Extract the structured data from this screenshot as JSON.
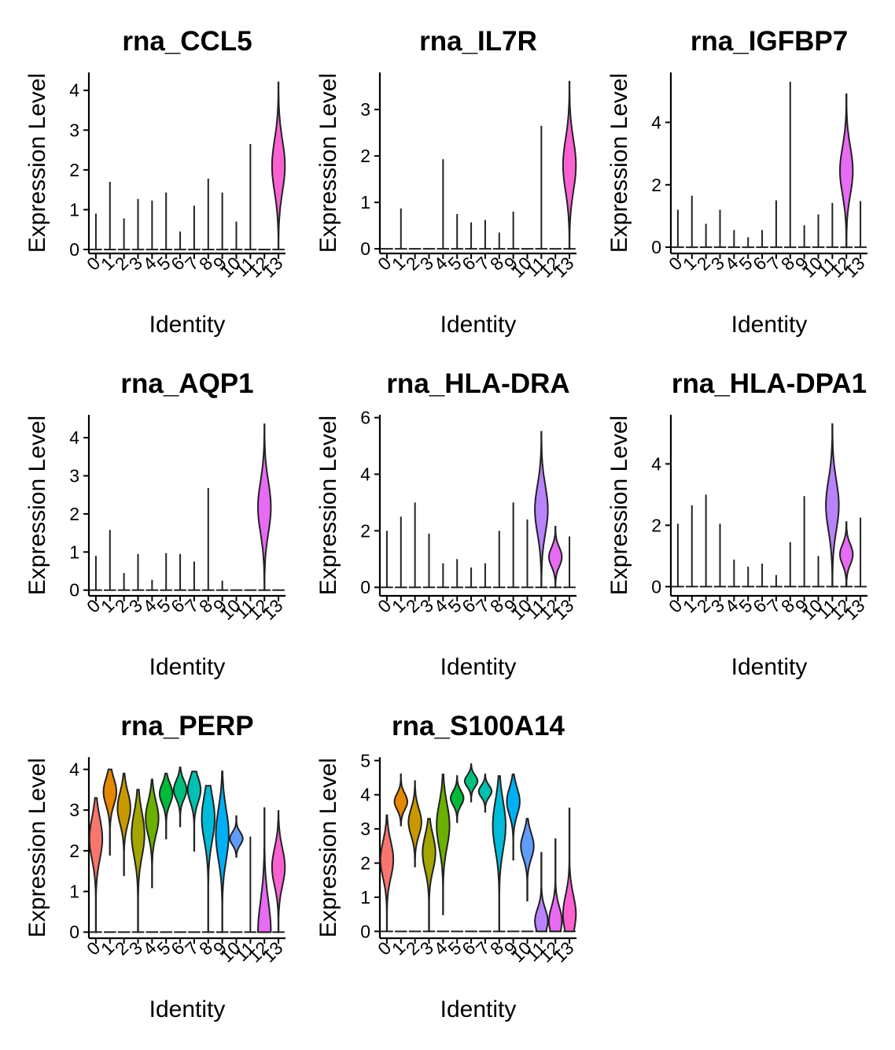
{
  "figure": {
    "xlabel": "Identity",
    "ylabel": "Expression Level"
  },
  "cluster_colors": {
    "0": "#F8766D",
    "1": "#E58700",
    "2": "#C99800",
    "3": "#A3A500",
    "4": "#6BB100",
    "5": "#00BA38",
    "6": "#00BF7D",
    "7": "#00C0AF",
    "8": "#00BCD8",
    "9": "#00B0F6",
    "10": "#619CFF",
    "11": "#B983FF",
    "12": "#E76BF3",
    "13": "#FD61D1"
  },
  "chart_data": [
    {
      "type": "violin",
      "title": "rna_CCL5",
      "xlabel": "Identity",
      "ylabel": "Expression Level",
      "categories": [
        "0",
        "1",
        "2",
        "3",
        "4",
        "5",
        "6",
        "7",
        "8",
        "9",
        "10",
        "11",
        "12",
        "13"
      ],
      "ylim": [
        -0.1,
        4.45
      ],
      "yticks": [
        0,
        1,
        2,
        3,
        4
      ],
      "max_values": [
        0.9,
        1.7,
        0.78,
        1.27,
        1.23,
        1.43,
        0.45,
        1.1,
        1.78,
        1.43,
        0.7,
        2.65,
        0,
        4.2
      ],
      "filled_clusters": [
        "13"
      ]
    },
    {
      "type": "violin",
      "title": "rna_IL7R",
      "xlabel": "Identity",
      "ylabel": "Expression Level",
      "categories": [
        "0",
        "1",
        "2",
        "3",
        "4",
        "5",
        "6",
        "7",
        "8",
        "9",
        "10",
        "11",
        "12",
        "13"
      ],
      "ylim": [
        -0.1,
        3.8
      ],
      "yticks": [
        0,
        1,
        2,
        3
      ],
      "max_values": [
        0,
        0.87,
        0,
        0,
        1.93,
        0.75,
        0.57,
        0.62,
        0.35,
        0.8,
        0,
        2.65,
        0,
        3.6
      ],
      "filled_clusters": [
        "13"
      ]
    },
    {
      "type": "violin",
      "title": "rna_IGFBP7",
      "xlabel": "Identity",
      "ylabel": "Expression Level",
      "categories": [
        "0",
        "1",
        "2",
        "3",
        "4",
        "5",
        "6",
        "7",
        "8",
        "9",
        "10",
        "11",
        "12",
        "13"
      ],
      "ylim": [
        -0.2,
        5.6
      ],
      "yticks": [
        0,
        2,
        4
      ],
      "max_values": [
        1.2,
        1.65,
        0.75,
        1.2,
        0.55,
        0.32,
        0.55,
        1.5,
        5.3,
        0.7,
        1.05,
        1.42,
        4.9,
        1.48
      ],
      "filled_clusters": [
        "12"
      ]
    },
    {
      "type": "violin",
      "title": "rna_AQP1",
      "xlabel": "Identity",
      "ylabel": "Expression Level",
      "categories": [
        "0",
        "1",
        "2",
        "3",
        "4",
        "5",
        "6",
        "7",
        "8",
        "9",
        "10",
        "11",
        "12",
        "13"
      ],
      "ylim": [
        -0.15,
        4.6
      ],
      "yticks": [
        0,
        1,
        2,
        3,
        4
      ],
      "max_values": [
        0.9,
        1.58,
        0.45,
        0.95,
        0.27,
        0.97,
        0.95,
        0.75,
        2.68,
        0.25,
        0,
        0,
        4.35,
        0
      ],
      "filled_clusters": [
        "12"
      ]
    },
    {
      "type": "violin",
      "title": "rna_HLA-DRA",
      "xlabel": "Identity",
      "ylabel": "Expression Level",
      "categories": [
        "0",
        "1",
        "2",
        "3",
        "4",
        "5",
        "6",
        "7",
        "8",
        "9",
        "10",
        "11",
        "12",
        "13"
      ],
      "ylim": [
        -0.3,
        6.1
      ],
      "yticks": [
        0,
        2,
        4,
        6
      ],
      "max_values": [
        2.0,
        2.5,
        3.0,
        1.9,
        0.85,
        1.0,
        0.7,
        0.85,
        2.0,
        3.0,
        2.4,
        5.5,
        2.15,
        1.8
      ],
      "filled_clusters": [
        "11",
        "12"
      ]
    },
    {
      "type": "violin",
      "title": "rna_HLA-DPA1",
      "xlabel": "Identity",
      "ylabel": "Expression Level",
      "categories": [
        "0",
        "1",
        "2",
        "3",
        "4",
        "5",
        "6",
        "7",
        "8",
        "9",
        "10",
        "11",
        "12",
        "13"
      ],
      "ylim": [
        -0.3,
        5.6
      ],
      "yticks": [
        0,
        2,
        4
      ],
      "max_values": [
        2.05,
        2.65,
        3.0,
        2.05,
        0.88,
        0.65,
        0.75,
        0.38,
        1.45,
        2.95,
        1.0,
        5.3,
        2.1,
        2.25
      ],
      "filled_clusters": [
        "11",
        "12"
      ]
    },
    {
      "type": "violin",
      "title": "rna_PERP",
      "xlabel": "Identity",
      "ylabel": "Expression Level",
      "categories": [
        "0",
        "1",
        "2",
        "3",
        "4",
        "5",
        "6",
        "7",
        "8",
        "9",
        "10",
        "11",
        "12",
        "13"
      ],
      "ylim": [
        -0.15,
        4.3
      ],
      "yticks": [
        0,
        1,
        2,
        3,
        4
      ],
      "min_values": [
        0,
        1.9,
        1.4,
        0,
        1.1,
        2.3,
        2.6,
        2.0,
        0,
        0,
        1.85,
        0,
        0,
        0
      ],
      "max_values": [
        3.3,
        4.0,
        3.9,
        3.5,
        3.75,
        3.9,
        4.05,
        3.95,
        3.6,
        3.95,
        2.85,
        2.35,
        3.05,
        2.98
      ],
      "median_values": [
        2.3,
        3.45,
        3.05,
        2.4,
        2.8,
        3.4,
        3.5,
        3.5,
        2.8,
        2.4,
        2.3,
        0,
        0,
        1.6
      ],
      "filled_clusters": [
        "0",
        "1",
        "2",
        "3",
        "4",
        "5",
        "6",
        "7",
        "8",
        "9",
        "10",
        "12",
        "13"
      ]
    },
    {
      "type": "violin",
      "title": "rna_S100A14",
      "xlabel": "Identity",
      "ylabel": "Expression Level",
      "categories": [
        "0",
        "1",
        "2",
        "3",
        "4",
        "5",
        "6",
        "7",
        "8",
        "9",
        "10",
        "11",
        "12",
        "13"
      ],
      "ylim": [
        -0.2,
        5.1
      ],
      "yticks": [
        0,
        1,
        2,
        3,
        4,
        5
      ],
      "min_values": [
        0,
        3.1,
        1.9,
        0,
        0.5,
        3.2,
        3.8,
        3.5,
        0,
        2.1,
        0.9,
        0,
        0,
        0
      ],
      "max_values": [
        3.4,
        4.6,
        4.4,
        3.3,
        4.6,
        4.55,
        4.9,
        4.6,
        4.55,
        4.6,
        3.3,
        2.3,
        2.7,
        3.6
      ],
      "median_values": [
        2.1,
        3.8,
        3.2,
        2.3,
        3.1,
        3.9,
        4.4,
        4.1,
        3.1,
        3.8,
        2.5,
        0.3,
        0.3,
        0.5
      ],
      "filled_clusters": [
        "0",
        "1",
        "2",
        "3",
        "4",
        "5",
        "6",
        "7",
        "8",
        "9",
        "10",
        "11",
        "12",
        "13"
      ]
    }
  ]
}
